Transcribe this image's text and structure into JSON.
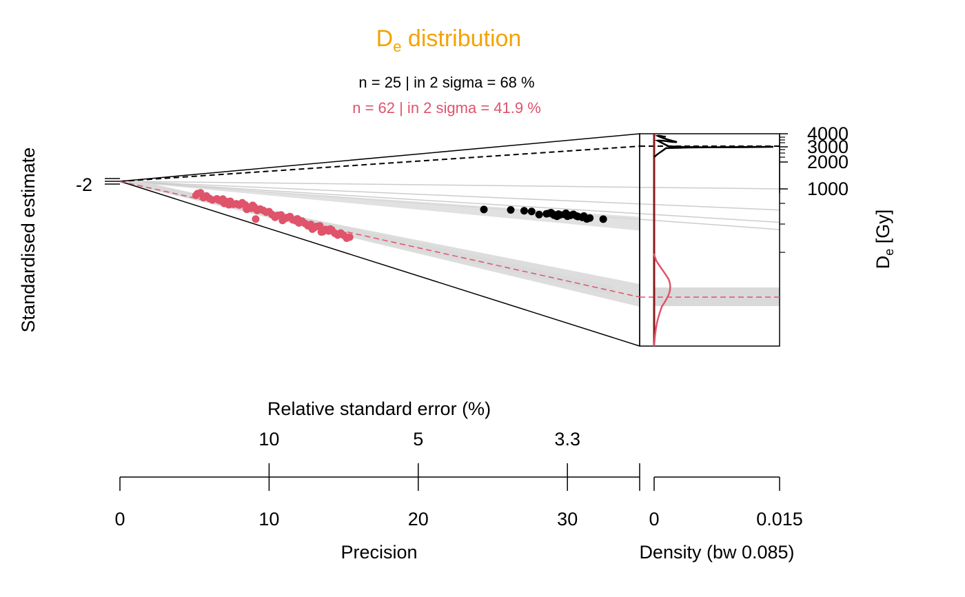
{
  "chart_data": {
    "type": "scatter",
    "plot_kind": "abanico",
    "title": {
      "main": "D",
      "sub": "e",
      "rest": " distribution"
    },
    "subtitles": [
      {
        "text": "n = 25 | in 2 sigma = 68 %",
        "color": "#000000"
      },
      {
        "text": "n = 62 | in 2 sigma = 41.9 %",
        "color": "#DF536B"
      }
    ],
    "colors": {
      "title": "#F5A300",
      "series1": "#000000",
      "series2": "#DF536B",
      "band": "#d9d9d9",
      "grid": "#cccccc",
      "central": "#8b1a1a"
    },
    "ylabel": "Standardised estimate",
    "y_ticks": [
      "-2"
    ],
    "xlabel_precision": "Precision",
    "x_precision_ticks": [
      "0",
      "10",
      "20",
      "30"
    ],
    "xlim_precision": [
      0,
      35
    ],
    "xlabel_rse": "Relative standard error (%)",
    "x_rse_ticks": [
      "10",
      "5",
      "3.3"
    ],
    "xlabel_density": "Density (bw 0.085)",
    "x_density_ticks": [
      "0",
      "0.015"
    ],
    "zlabel": {
      "main": "D",
      "sub": "e",
      "rest": " [Gy]"
    },
    "z_ticks": [
      "4000",
      "3000",
      "2000",
      "1000"
    ],
    "series": [
      {
        "name": "n = 25",
        "color": "#000000",
        "central_De": 3000,
        "points": [
          [
            24.4,
            2920
          ],
          [
            26.2,
            2720
          ],
          [
            27.1,
            2710
          ],
          [
            27.6,
            2720
          ],
          [
            28.1,
            3020
          ],
          [
            28.6,
            2860
          ],
          [
            28.8,
            2770
          ],
          [
            29.0,
            2820
          ],
          [
            29.3,
            3060
          ],
          [
            29.5,
            2870
          ],
          [
            29.8,
            2780
          ],
          [
            30.0,
            2950
          ],
          [
            30.2,
            2830
          ],
          [
            30.4,
            2700
          ],
          [
            30.6,
            2850
          ],
          [
            31.0,
            2950
          ],
          [
            31.3,
            3090
          ],
          [
            31.5,
            2960
          ],
          [
            32.4,
            2970
          ],
          [
            29.9,
            2650
          ],
          [
            29.4,
            2800
          ],
          [
            28.9,
            2700
          ],
          [
            30.7,
            2900
          ],
          [
            31.1,
            2800
          ],
          [
            29.1,
            2950
          ]
        ]
      },
      {
        "name": "n = 62",
        "color": "#DF536B",
        "central_De": 210,
        "points": [
          [
            5.1,
            1.0
          ],
          [
            5.2,
            1.7
          ],
          [
            5.4,
            2.2
          ],
          [
            5.6,
            0.8
          ],
          [
            5.8,
            1.6
          ],
          [
            6.0,
            1.0
          ],
          [
            6.2,
            0.7
          ],
          [
            6.5,
            1.4
          ],
          [
            6.8,
            1.0
          ],
          [
            7.0,
            0.4
          ],
          [
            7.2,
            1.2
          ],
          [
            7.4,
            1.6
          ],
          [
            7.6,
            0.8
          ],
          [
            7.8,
            1.2
          ],
          [
            8.0,
            1.0
          ],
          [
            8.2,
            2.0
          ],
          [
            8.4,
            1.5
          ],
          [
            8.6,
            0.9
          ],
          [
            8.8,
            0.8
          ],
          [
            9.0,
            1.5
          ],
          [
            9.2,
            0.5
          ],
          [
            9.4,
            1.2
          ],
          [
            9.6,
            1.0
          ],
          [
            9.8,
            0.6
          ],
          [
            10.0,
            1.0
          ],
          [
            10.2,
            0.2
          ],
          [
            10.4,
            -0.5
          ],
          [
            10.6,
            0.4
          ],
          [
            10.8,
            0.8
          ],
          [
            11.0,
            -0.4
          ],
          [
            11.2,
            0.3
          ],
          [
            11.4,
            0.9
          ],
          [
            11.6,
            0.0
          ],
          [
            11.8,
            -0.1
          ],
          [
            12.0,
            -0.6
          ],
          [
            12.2,
            0.3
          ],
          [
            12.4,
            -0.3
          ],
          [
            12.6,
            -0.9
          ],
          [
            12.8,
            -0.2
          ],
          [
            13.0,
            -1.2
          ],
          [
            13.2,
            -0.4
          ],
          [
            13.4,
            0.0
          ],
          [
            13.6,
            -1.8
          ],
          [
            13.8,
            -0.8
          ],
          [
            14.0,
            -1.1
          ],
          [
            14.2,
            -0.5
          ],
          [
            14.4,
            -1.4
          ],
          [
            14.6,
            -1.8
          ],
          [
            14.8,
            -0.9
          ],
          [
            15.0,
            -1.4
          ],
          [
            15.2,
            -2.2
          ],
          [
            15.4,
            -1.6
          ],
          [
            9.1,
            -2.6
          ],
          [
            8.5,
            0.1
          ],
          [
            11.9,
            0.7
          ],
          [
            12.9,
            -1.7
          ],
          [
            13.5,
            -2.0
          ],
          [
            14.1,
            -0.3
          ],
          [
            6.9,
            1.8
          ],
          [
            7.3,
            0.3
          ],
          [
            8.9,
            1.9
          ],
          [
            10.9,
            -1.0
          ]
        ]
      }
    ]
  }
}
